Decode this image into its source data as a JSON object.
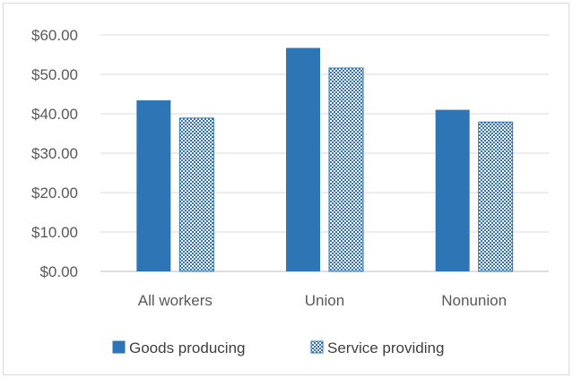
{
  "chart_data": {
    "type": "bar",
    "categories": [
      "All workers",
      "Union",
      "Nonunion"
    ],
    "series": [
      {
        "name": "Goods producing",
        "values": [
          43.4,
          56.7,
          41.0
        ],
        "color": "#2e75b6",
        "pattern": "solid"
      },
      {
        "name": "Service providing",
        "values": [
          38.9,
          51.6,
          37.9
        ],
        "color": "#2e75b6",
        "pattern": "checker"
      }
    ],
    "y_ticks": [
      "$0.00",
      "$10.00",
      "$20.00",
      "$30.00",
      "$40.00",
      "$50.00",
      "$60.00"
    ],
    "ylim": [
      0,
      60
    ],
    "ytick_step": 10,
    "grid": true,
    "legend_position": "bottom"
  }
}
